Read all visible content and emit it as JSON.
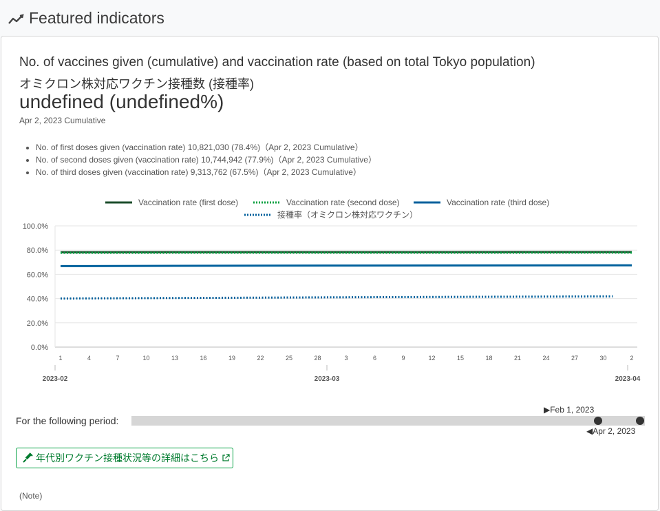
{
  "header": {
    "title": "Featured indicators",
    "icon": "trend-line-icon"
  },
  "card": {
    "title_en": "No. of vaccines given (cumulative) and vaccination rate (based on total Tokyo population)",
    "title_ja": "オミクロン株対応ワクチン接種数 (接種率)",
    "big_value": "undefined (undefined%)",
    "date_note": "Apr 2, 2023 Cumulative",
    "doses": [
      "No. of first doses given (vaccination rate) 10,821,030 (78.4%)（Apr 2, 2023 Cumulative）",
      "No. of second doses given (vaccination rate) 10,744,942 (77.9%)（Apr 2, 2023 Cumulative）",
      "No. of third doses given (vaccination rate) 9,313,762 (67.5%)（Apr 2, 2023 Cumulative）"
    ]
  },
  "chart_data": {
    "type": "line",
    "ylim": [
      0,
      100
    ],
    "y_ticks": [
      "0.0%",
      "20.0%",
      "40.0%",
      "60.0%",
      "80.0%",
      "100.0%"
    ],
    "x_tick_labels": [
      "1",
      "4",
      "7",
      "10",
      "13",
      "16",
      "19",
      "22",
      "25",
      "28",
      "3",
      "6",
      "9",
      "12",
      "15",
      "18",
      "21",
      "24",
      "27",
      "30",
      "2"
    ],
    "x_month_labels": [
      "2023-02",
      "2023-03",
      "2023-04"
    ],
    "x_start": "2023-02-01",
    "x_end": "2023-04-02",
    "grid": true,
    "legend_position": "top",
    "series": [
      {
        "name": "Vaccination rate (first dose)",
        "color": "#1b4d2b",
        "style": "solid",
        "points": [
          [
            "2023-02-01",
            78.3
          ],
          [
            "2023-04-02",
            78.4
          ]
        ]
      },
      {
        "name": "Vaccination rate (second dose)",
        "color": "#00a040",
        "style": "dotted",
        "points": [
          [
            "2023-02-01",
            77.8
          ],
          [
            "2023-04-02",
            77.9
          ]
        ]
      },
      {
        "name": "Vaccination rate (third dose)",
        "color": "#00609c",
        "style": "solid",
        "points": [
          [
            "2023-02-01",
            66.8
          ],
          [
            "2023-03-01",
            67.3
          ],
          [
            "2023-04-02",
            67.5
          ]
        ]
      },
      {
        "name": "接種率（オミクロン株対応ワクチン）",
        "color": "#00609c",
        "style": "dotted",
        "points": [
          [
            "2023-02-01",
            40.1
          ],
          [
            "2023-03-01",
            41.0
          ],
          [
            "2023-03-31",
            41.9
          ]
        ]
      }
    ]
  },
  "period": {
    "label": "For the following period:",
    "start_label": "▶Feb 1, 2023",
    "end_label": "◀Apr 2, 2023"
  },
  "link": {
    "label": "年代別ワクチン接種状況等の詳細はこちら",
    "icon": "syringe-icon",
    "external_icon": "external-link-icon"
  },
  "note": "(Note)"
}
